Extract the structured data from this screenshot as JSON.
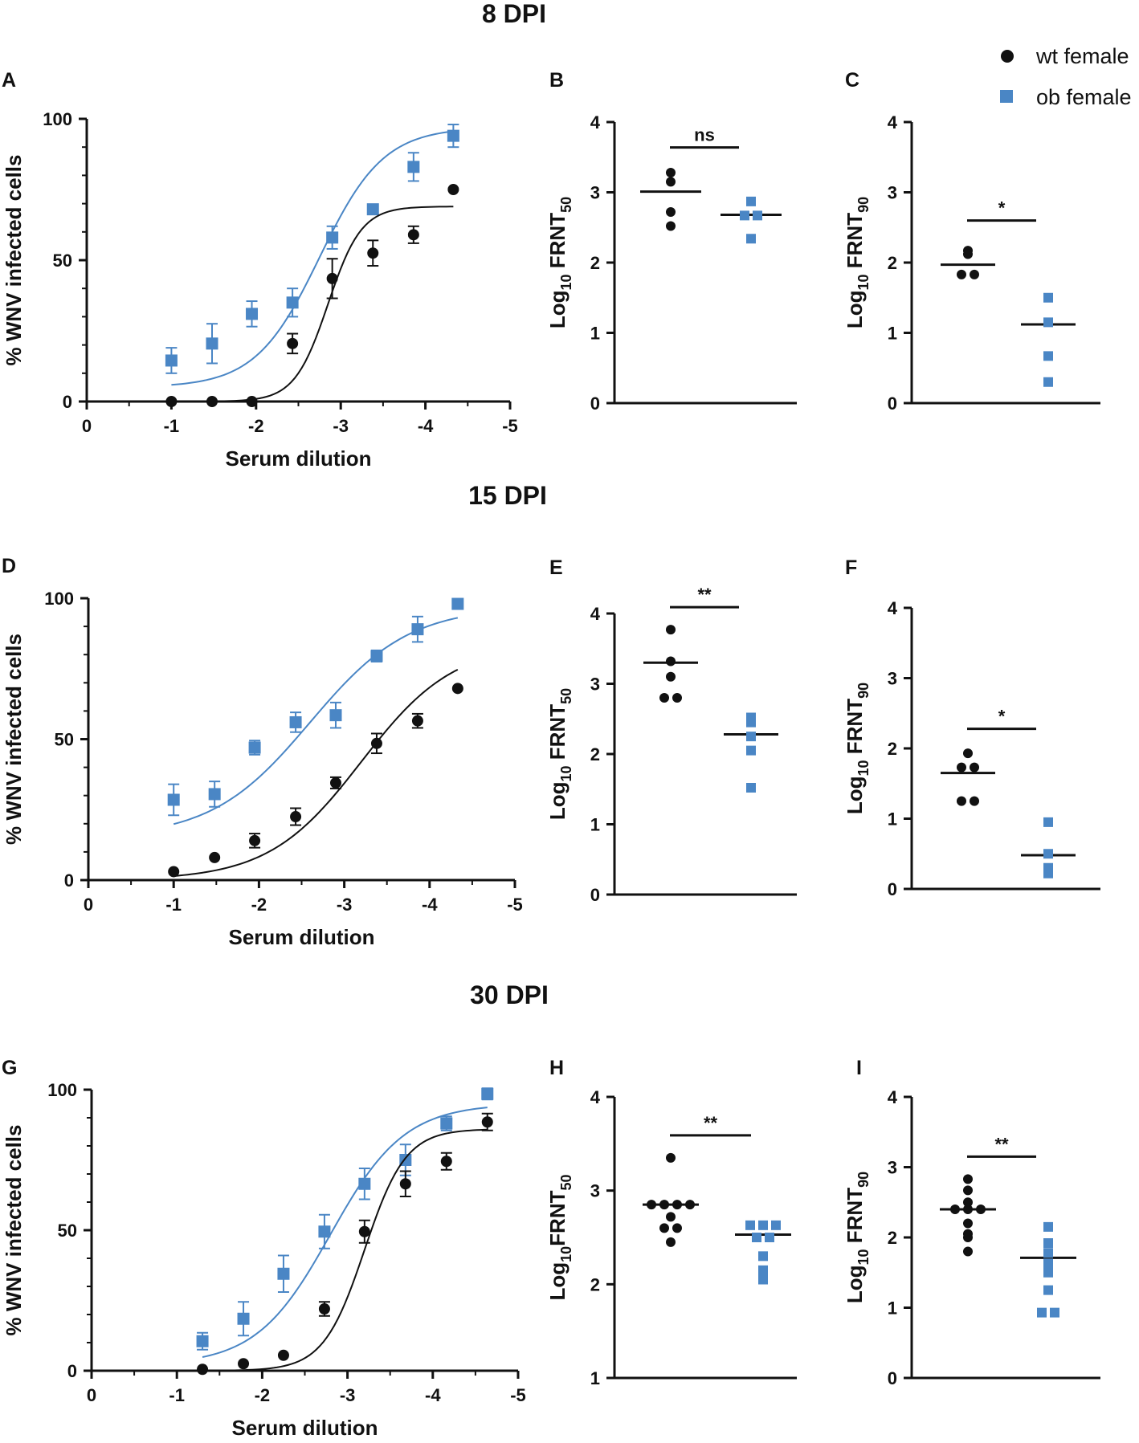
{
  "figure": {
    "row_titles": [
      "8 DPI",
      "15 DPI",
      "30 DPI"
    ],
    "legend": [
      {
        "label": "wt female",
        "marker": "circle",
        "color": "#111111"
      },
      {
        "label": "ob female",
        "marker": "square",
        "color": "#4A86C5"
      }
    ],
    "colors": {
      "wt": "#111111",
      "ob": "#4A86C5",
      "fit_ob": "#4A86C5",
      "fit_wt": "#111111"
    }
  },
  "chart_data": [
    {
      "id": "A",
      "panel_label": "A",
      "type": "scatter",
      "title": "",
      "xlabel": "Serum dilution",
      "ylabel": "% WNV infected cells",
      "xlim": [
        0,
        -5
      ],
      "ylim": [
        0,
        100
      ],
      "x_ticks": [
        "0",
        "-1",
        "-2",
        "-3",
        "-4",
        "-5"
      ],
      "y_ticks": [
        "0",
        "50",
        "100"
      ],
      "series": [
        {
          "name": "wt female",
          "marker": "circle",
          "x": [
            -1,
            -1.48,
            -1.95,
            -2.43,
            -2.9,
            -3.38,
            -3.86,
            -4.33
          ],
          "y": [
            0,
            0,
            0,
            20.5,
            43.5,
            52.5,
            59,
            75
          ],
          "err": [
            0,
            0,
            0,
            3.5,
            7,
            4.5,
            3,
            0
          ],
          "fit": {
            "bottom": 0,
            "top": 69,
            "logEC50": -2.85,
            "hill": 2.2
          }
        },
        {
          "name": "ob female",
          "marker": "square",
          "x": [
            -1,
            -1.48,
            -1.95,
            -2.43,
            -2.9,
            -3.38,
            -3.86,
            -4.33
          ],
          "y": [
            14.5,
            20.5,
            31,
            35,
            58,
            68,
            83,
            94
          ],
          "err": [
            4.5,
            7,
            4.5,
            5,
            4,
            1.5,
            5,
            4
          ],
          "fit": {
            "bottom": 5,
            "top": 97,
            "logEC50": -2.75,
            "hill": 1.15
          }
        }
      ]
    },
    {
      "id": "B",
      "panel_label": "B",
      "type": "scatter",
      "ylabel_main": "Log",
      "ylabel_sub1": "10",
      "ylabel_mid": " FRNT",
      "ylabel_sub2": "50",
      "ylim": [
        0,
        4
      ],
      "y_ticks": [
        "0",
        "1",
        "2",
        "3",
        "4"
      ],
      "significance": "ns",
      "groups": [
        {
          "name": "wt female",
          "marker": "circle",
          "mean": 3.01,
          "values": [
            3.28,
            3.15,
            2.72,
            2.52
          ]
        },
        {
          "name": "ob female",
          "marker": "square",
          "mean": 2.68,
          "values": [
            2.87,
            2.67,
            2.67,
            2.34
          ]
        }
      ]
    },
    {
      "id": "C",
      "panel_label": "C",
      "type": "scatter",
      "ylabel_main": "Log",
      "ylabel_sub1": "10",
      "ylabel_mid": " FRNT",
      "ylabel_sub2": "90",
      "ylim": [
        0,
        4
      ],
      "y_ticks": [
        "0",
        "1",
        "2",
        "3",
        "4"
      ],
      "significance": "*",
      "groups": [
        {
          "name": "wt female",
          "marker": "circle",
          "mean": 1.97,
          "values": [
            2.17,
            2.12,
            1.83,
            1.83
          ]
        },
        {
          "name": "ob female",
          "marker": "square",
          "mean": 1.12,
          "values": [
            1.5,
            1.15,
            0.67,
            0.3
          ]
        }
      ]
    },
    {
      "id": "D",
      "panel_label": "D",
      "type": "scatter",
      "title": "",
      "xlabel": "Serum dilution",
      "ylabel": "% WNV infected cells",
      "xlim": [
        0,
        -5
      ],
      "ylim": [
        0,
        100
      ],
      "x_ticks": [
        "0",
        "-1",
        "-2",
        "-3",
        "-4",
        "-5"
      ],
      "y_ticks": [
        "0",
        "50",
        "100"
      ],
      "series": [
        {
          "name": "wt female",
          "marker": "circle",
          "x": [
            -1,
            -1.48,
            -1.95,
            -2.43,
            -2.9,
            -3.38,
            -3.86,
            -4.33
          ],
          "y": [
            3,
            8,
            14,
            22.5,
            34.5,
            48.5,
            56.5,
            68
          ],
          "err": [
            0,
            0,
            2.5,
            3,
            2,
            3.5,
            2.5,
            0
          ],
          "fit": {
            "bottom": 0,
            "top": 84,
            "logEC50": -3.2,
            "hill": 0.8
          }
        },
        {
          "name": "ob female",
          "marker": "square",
          "x": [
            -1,
            -1.48,
            -1.95,
            -2.43,
            -2.9,
            -3.38,
            -3.86,
            -4.33
          ],
          "y": [
            28.5,
            30.5,
            47,
            56,
            58.5,
            79.5,
            89,
            98
          ],
          "err": [
            5.5,
            4.5,
            2.5,
            3.5,
            4.5,
            2,
            4.5,
            0
          ],
          "fit": {
            "bottom": 15,
            "top": 97,
            "logEC50": -2.6,
            "hill": 0.75
          }
        }
      ]
    },
    {
      "id": "E",
      "panel_label": "E",
      "type": "scatter",
      "ylabel_main": "Log",
      "ylabel_sub1": "10",
      "ylabel_mid": " FRNT",
      "ylabel_sub2": "50",
      "ylim": [
        0,
        4
      ],
      "y_ticks": [
        "0",
        "1",
        "2",
        "3",
        "4"
      ],
      "significance": "**",
      "groups": [
        {
          "name": "wt female",
          "marker": "circle",
          "mean": 3.3,
          "values": [
            3.77,
            3.32,
            3.1,
            2.8,
            2.8
          ]
        },
        {
          "name": "ob female",
          "marker": "square",
          "mean": 2.28,
          "values": [
            2.52,
            2.45,
            2.25,
            2.05,
            1.52
          ]
        }
      ]
    },
    {
      "id": "F",
      "panel_label": "F",
      "type": "scatter",
      "ylabel_main": "Log",
      "ylabel_sub1": "10",
      "ylabel_mid": " FRNT",
      "ylabel_sub2": "90",
      "ylim": [
        0,
        4
      ],
      "y_ticks": [
        "0",
        "1",
        "2",
        "3",
        "4"
      ],
      "significance": "*",
      "groups": [
        {
          "name": "wt female",
          "marker": "circle",
          "mean": 1.65,
          "values": [
            1.93,
            1.73,
            1.73,
            1.25,
            1.25
          ]
        },
        {
          "name": "ob female",
          "marker": "square",
          "mean": 0.48,
          "values": [
            0.95,
            0.5,
            0.3,
            0.22
          ]
        }
      ]
    },
    {
      "id": "G",
      "panel_label": "G",
      "type": "scatter",
      "title": "",
      "xlabel": "Serum dilution",
      "ylabel": "% WNV infected cells",
      "xlim": [
        0,
        -5
      ],
      "ylim": [
        0,
        100
      ],
      "x_ticks": [
        "0",
        "-1",
        "-2",
        "-3",
        "-4",
        "-5"
      ],
      "y_ticks": [
        "0",
        "50",
        "100"
      ],
      "series": [
        {
          "name": "wt female",
          "marker": "circle",
          "x": [
            -1.3,
            -1.78,
            -2.25,
            -2.73,
            -3.2,
            -3.68,
            -4.16,
            -4.64
          ],
          "y": [
            0.5,
            2.5,
            5.5,
            22,
            49.5,
            66.5,
            74.5,
            88.5
          ],
          "err": [
            0,
            0,
            0,
            2.5,
            4,
            4.5,
            3,
            3
          ],
          "fit": {
            "bottom": 0,
            "top": 86,
            "logEC50": -3.2,
            "hill": 1.8
          }
        },
        {
          "name": "ob female",
          "marker": "square",
          "x": [
            -1.3,
            -1.78,
            -2.25,
            -2.73,
            -3.2,
            -3.68,
            -4.16,
            -4.64
          ],
          "y": [
            10.5,
            18.5,
            34.5,
            49.5,
            66.5,
            75,
            88,
            98.5
          ],
          "err": [
            3,
            6,
            6.5,
            6,
            5.5,
            5.5,
            2.5,
            2
          ],
          "fit": {
            "bottom": 2,
            "top": 95,
            "logEC50": -2.8,
            "hill": 1.0
          }
        }
      ]
    },
    {
      "id": "H",
      "panel_label": "H",
      "type": "scatter",
      "ylabel_main": "Log",
      "ylabel_sub1": "10",
      "ylabel_mid": "FRNT",
      "ylabel_sub2": "50",
      "ylim": [
        1,
        4
      ],
      "y_ticks": [
        "1",
        "2",
        "3",
        "4"
      ],
      "significance": "**",
      "groups": [
        {
          "name": "wt female",
          "marker": "circle",
          "mean": 2.85,
          "values": [
            3.35,
            2.85,
            2.85,
            2.85,
            2.85,
            2.72,
            2.6,
            2.6,
            2.45
          ]
        },
        {
          "name": "ob female",
          "marker": "square",
          "mean": 2.53,
          "values": [
            2.63,
            2.63,
            2.63,
            2.5,
            2.5,
            2.3,
            2.15,
            2.05
          ]
        }
      ]
    },
    {
      "id": "I",
      "panel_label": "I",
      "type": "scatter",
      "ylabel_main": "Log",
      "ylabel_sub1": "10",
      "ylabel_mid": " FRNT",
      "ylabel_sub2": "90",
      "ylim": [
        0,
        4
      ],
      "y_ticks": [
        "0",
        "1",
        "2",
        "3",
        "4"
      ],
      "significance": "**",
      "groups": [
        {
          "name": "wt female",
          "marker": "circle",
          "mean": 2.4,
          "values": [
            2.83,
            2.67,
            2.5,
            2.4,
            2.4,
            2.4,
            2.2,
            2.05,
            2.0,
            1.8
          ]
        },
        {
          "name": "ob female",
          "marker": "square",
          "mean": 1.71,
          "values": [
            2.15,
            1.92,
            1.78,
            1.63,
            1.5,
            1.25,
            0.93,
            0.93
          ]
        }
      ]
    }
  ]
}
